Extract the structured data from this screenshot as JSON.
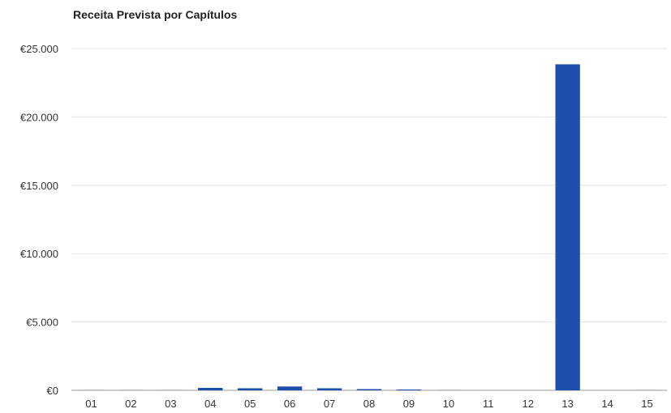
{
  "chart_data": {
    "type": "bar",
    "title": "Receita Prevista por Capítulos",
    "categories": [
      "01",
      "02",
      "03",
      "04",
      "05",
      "06",
      "07",
      "08",
      "09",
      "10",
      "11",
      "12",
      "13",
      "14",
      "15"
    ],
    "values": [
      10,
      10,
      10,
      180,
      150,
      280,
      150,
      90,
      60,
      10,
      0,
      0,
      23850,
      0,
      10
    ],
    "ylim": [
      0,
      25000
    ],
    "yticks": [
      0,
      5000,
      10000,
      15000,
      20000,
      25000
    ],
    "ytick_labels": [
      "€0",
      "€5.000",
      "€10.000",
      "€15.000",
      "€20.000",
      "€25.000"
    ],
    "xlabel": "",
    "ylabel": "",
    "grid": true,
    "bar_color": "#1f4fad"
  }
}
